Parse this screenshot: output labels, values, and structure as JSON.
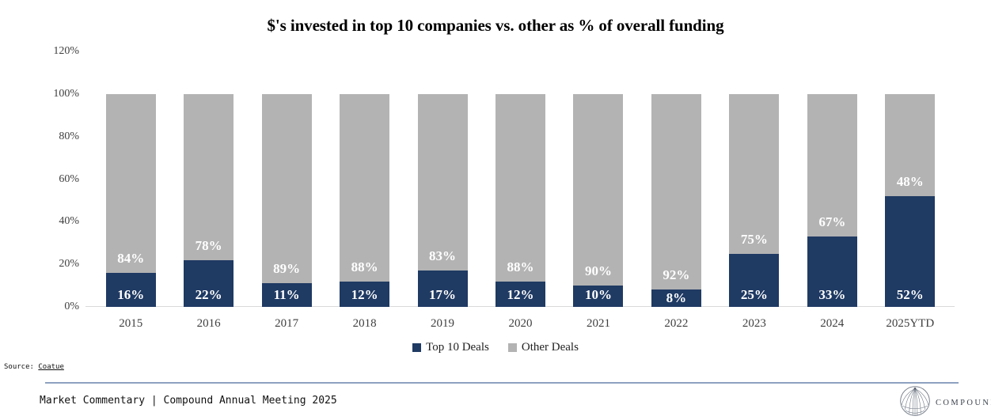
{
  "chart_data": {
    "type": "bar",
    "stacked": true,
    "title": "$'s invested in top 10 companies vs. other as % of overall funding",
    "categories": [
      "2015",
      "2016",
      "2017",
      "2018",
      "2019",
      "2020",
      "2021",
      "2022",
      "2023",
      "2024",
      "2025YTD"
    ],
    "series": [
      {
        "name": "Top 10 Deals",
        "color": "#1F3A63",
        "values": [
          16,
          22,
          11,
          12,
          17,
          12,
          10,
          8,
          25,
          33,
          52
        ]
      },
      {
        "name": "Other Deals",
        "color": "#B3B3B3",
        "values": [
          84,
          78,
          89,
          88,
          83,
          88,
          90,
          92,
          75,
          67,
          48
        ]
      }
    ],
    "data_label_suffix": "%",
    "y_axis": {
      "tick_labels": [
        "0%",
        "20%",
        "40%",
        "60%",
        "80%",
        "100%",
        "120%"
      ],
      "tick_values": [
        0,
        20,
        40,
        60,
        80,
        100,
        120
      ],
      "min": 0,
      "max": 120
    },
    "grid": false,
    "legend_position": "bottom",
    "data_label_color": "#FFFFFF",
    "axis_label_color": "#3F3F3F",
    "baseline_color": "#D9D9D9"
  },
  "source": {
    "label": "Source: ",
    "link_text": "Coatue"
  },
  "footer": {
    "text": "Market Commentary | Compound Annual Meeting 2025"
  },
  "logo": {
    "wordmark": "COMPOUND"
  },
  "colors": {
    "divider": "#8EA1C0",
    "background": "#FFFFFF"
  }
}
